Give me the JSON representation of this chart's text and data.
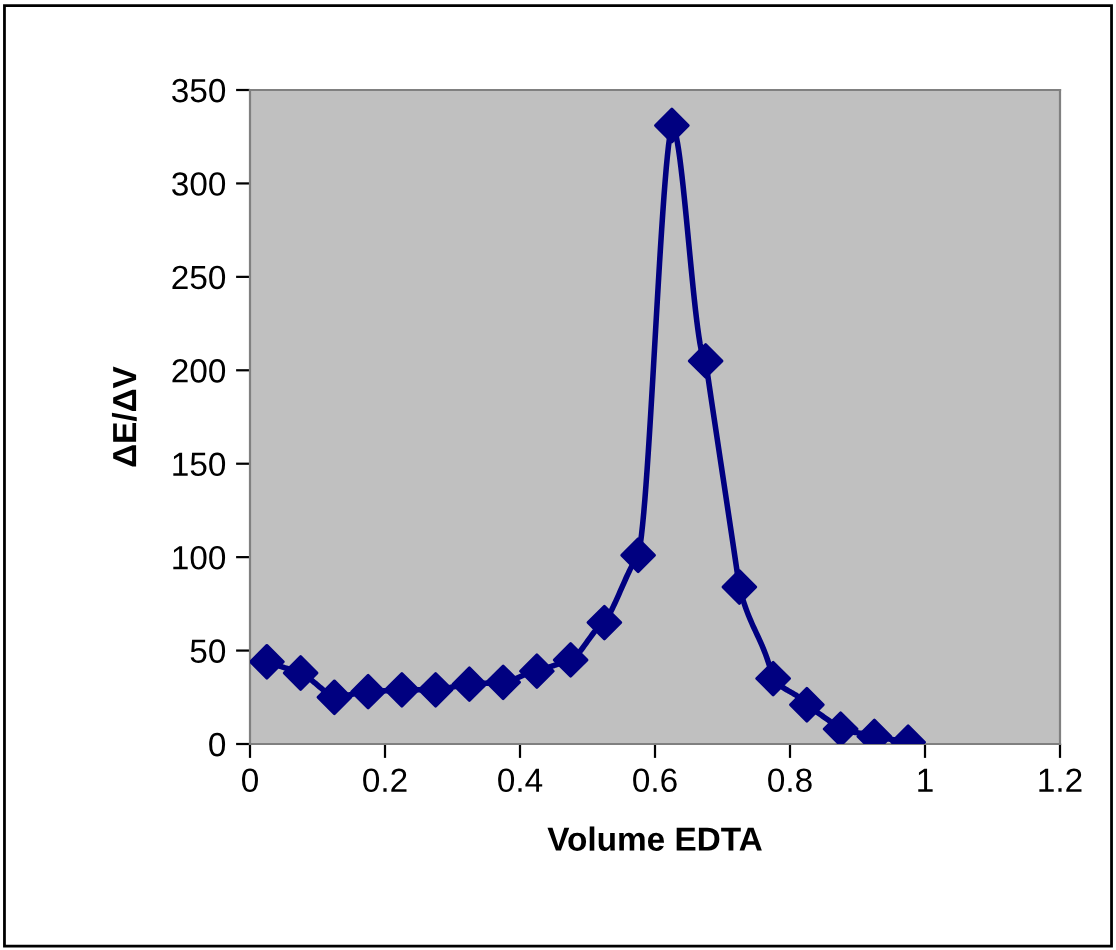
{
  "chart_data": {
    "type": "line",
    "xlabel": "Volume EDTA",
    "ylabel": "ΔE/ΔV",
    "x": [
      0.025,
      0.075,
      0.125,
      0.175,
      0.225,
      0.275,
      0.325,
      0.375,
      0.425,
      0.475,
      0.525,
      0.575,
      0.625,
      0.675,
      0.725,
      0.775,
      0.825,
      0.875,
      0.925,
      0.975
    ],
    "series": [
      {
        "color": "#000080",
        "values": [
          44,
          38,
          25,
          28,
          29,
          29,
          32,
          33,
          39,
          45,
          65,
          101,
          331,
          205,
          84,
          35,
          21,
          8,
          4,
          1
        ]
      }
    ],
    "xlim": [
      0,
      1.2
    ],
    "xticks": [
      0,
      0.2,
      0.4,
      0.6,
      0.8,
      1,
      1.2
    ],
    "ylim": [
      0,
      350
    ],
    "yticks": [
      0,
      50,
      100,
      150,
      200,
      250,
      300,
      350
    ],
    "grid": false,
    "legend": false,
    "marker": "diamond",
    "line_style": "solid"
  }
}
